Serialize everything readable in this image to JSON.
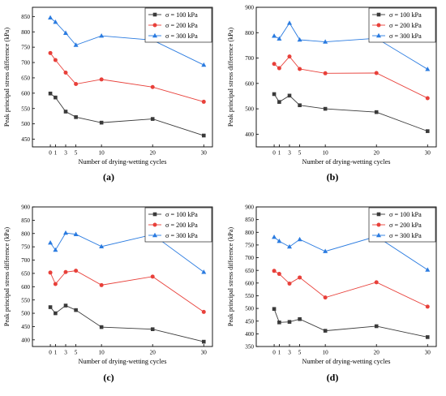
{
  "figure": {
    "xlabel": "Number of drying-wetting cycles",
    "ylabel": "Peak principal stress difference (kPa)",
    "legend_labels": [
      "σ = 100 kPa",
      "σ = 200 kPa",
      "σ = 300 kPa"
    ],
    "colors": {
      "s100": "#3a3a3a",
      "s200": "#e8403a",
      "s300": "#2a7be0",
      "axis": "#000000",
      "legend_border": "#222222"
    },
    "markers": {
      "s100": "square",
      "s200": "circle",
      "s300": "triangle"
    }
  },
  "chart_data": [
    {
      "caption": "(a)",
      "type": "line",
      "x": [
        0,
        1,
        3,
        5,
        10,
        20,
        30
      ],
      "xticks": [
        0,
        1,
        3,
        5,
        10,
        20,
        30
      ],
      "ylim": [
        425,
        880
      ],
      "yticks": [
        450,
        500,
        550,
        600,
        650,
        700,
        750,
        800,
        850
      ],
      "legend_position": "top-right",
      "series": [
        {
          "name": "σ = 100 kPa",
          "values": [
            599,
            586,
            540,
            522,
            504,
            516,
            462
          ]
        },
        {
          "name": "σ = 200 kPa",
          "values": [
            731,
            708,
            667,
            630,
            645,
            620,
            572
          ]
        },
        {
          "name": "σ = 300 kPa",
          "values": [
            846,
            832,
            796,
            757,
            787,
            773,
            692
          ]
        }
      ]
    },
    {
      "caption": "(b)",
      "type": "line",
      "x": [
        0,
        1,
        3,
        5,
        10,
        20,
        30
      ],
      "xticks": [
        0,
        1,
        3,
        5,
        10,
        20,
        30
      ],
      "ylim": [
        350,
        900
      ],
      "yticks": [
        400,
        500,
        600,
        700,
        800,
        900
      ],
      "legend_position": "top-right",
      "series": [
        {
          "name": "σ = 100 kPa",
          "values": [
            558,
            527,
            552,
            514,
            500,
            487,
            412
          ]
        },
        {
          "name": "σ = 200 kPa",
          "values": [
            677,
            660,
            706,
            657,
            640,
            641,
            542
          ]
        },
        {
          "name": "σ = 300 kPa",
          "values": [
            787,
            776,
            838,
            772,
            764,
            778,
            656
          ]
        }
      ]
    },
    {
      "caption": "(c)",
      "type": "line",
      "x": [
        0,
        1,
        3,
        5,
        10,
        20,
        30
      ],
      "xticks": [
        0,
        1,
        3,
        5,
        10,
        20,
        30
      ],
      "ylim": [
        375,
        900
      ],
      "yticks": [
        400,
        450,
        500,
        550,
        600,
        650,
        700,
        750,
        800,
        850,
        900
      ],
      "legend_position": "top-right",
      "series": [
        {
          "name": "σ = 100 kPa",
          "values": [
            523,
            500,
            529,
            512,
            448,
            440,
            393
          ]
        },
        {
          "name": "σ = 200 kPa",
          "values": [
            653,
            610,
            655,
            660,
            606,
            638,
            505
          ]
        },
        {
          "name": "σ = 300 kPa",
          "values": [
            765,
            738,
            802,
            797,
            751,
            796,
            655
          ]
        }
      ]
    },
    {
      "caption": "(d)",
      "type": "line",
      "x": [
        0,
        1,
        3,
        5,
        10,
        20,
        30
      ],
      "xticks": [
        0,
        1,
        3,
        5,
        10,
        20,
        30
      ],
      "ylim": [
        350,
        900
      ],
      "yticks": [
        350,
        400,
        450,
        500,
        550,
        600,
        650,
        700,
        750,
        800,
        850,
        900
      ],
      "legend_position": "top-right",
      "series": [
        {
          "name": "σ = 100 kPa",
          "values": [
            498,
            445,
            447,
            458,
            412,
            430,
            387
          ]
        },
        {
          "name": "σ = 200 kPa",
          "values": [
            648,
            636,
            598,
            622,
            543,
            603,
            507
          ]
        },
        {
          "name": "σ = 300 kPa",
          "values": [
            781,
            765,
            743,
            772,
            725,
            784,
            652
          ]
        }
      ]
    }
  ]
}
